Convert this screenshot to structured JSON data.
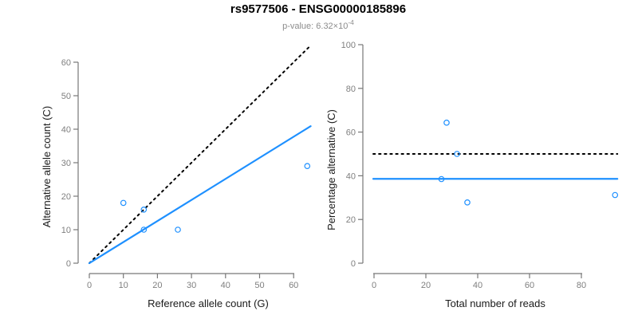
{
  "header": {
    "title": "rs9577506 - ENSG00000185896",
    "subtitle_prefix": "p-value: 6.32×10",
    "subtitle_exponent": "-4"
  },
  "colors": {
    "accent_blue": "#1E90FF",
    "axis_gray": "#777777",
    "tick_text_gray": "#7f7f7f",
    "label_black": "#1a1a1a",
    "dotted_black": "#000000"
  },
  "chart_data": [
    {
      "type": "scatter",
      "name": "allele-counts-scatter",
      "xlabel": "Reference allele count (G)",
      "ylabel": "Alternative allele count (C)",
      "xlim": [
        0,
        65
      ],
      "ylim": [
        0,
        65
      ],
      "xticks": [
        0,
        10,
        20,
        30,
        40,
        50,
        60
      ],
      "yticks": [
        0,
        10,
        20,
        30,
        40,
        50,
        60
      ],
      "grid": false,
      "points": [
        [
          10,
          18
        ],
        [
          16,
          16
        ],
        [
          16,
          10
        ],
        [
          26,
          10
        ],
        [
          64,
          29
        ]
      ],
      "lines": [
        {
          "name": "identity-expected",
          "style": "dotted",
          "color": "#000000",
          "from": [
            0,
            0
          ],
          "to": [
            65,
            65
          ]
        },
        {
          "name": "observed-fit",
          "style": "solid",
          "color": "#1E90FF",
          "from": [
            0,
            0
          ],
          "to": [
            65,
            40.9
          ]
        }
      ]
    },
    {
      "type": "scatter",
      "name": "percentage-vs-reads-scatter",
      "xlabel": "Total number of reads",
      "ylabel": "Percentage alternative (C)",
      "xlim": [
        0,
        94
      ],
      "ylim": [
        0,
        100
      ],
      "xticks": [
        0,
        20,
        40,
        60,
        80
      ],
      "yticks": [
        0,
        20,
        40,
        60,
        80,
        100
      ],
      "grid": false,
      "points": [
        [
          28,
          64.3
        ],
        [
          32,
          50
        ],
        [
          26,
          38.5
        ],
        [
          36,
          27.8
        ],
        [
          93,
          31.2
        ]
      ],
      "lines": [
        {
          "name": "expected-50-percent",
          "style": "dotted",
          "color": "#000000",
          "from": [
            -0.3,
            50
          ],
          "to": [
            93.9,
            50
          ]
        },
        {
          "name": "observed-mean-percent",
          "style": "solid",
          "color": "#1E90FF",
          "from": [
            -0.3,
            38.6
          ],
          "to": [
            93.9,
            38.6
          ]
        }
      ]
    }
  ]
}
